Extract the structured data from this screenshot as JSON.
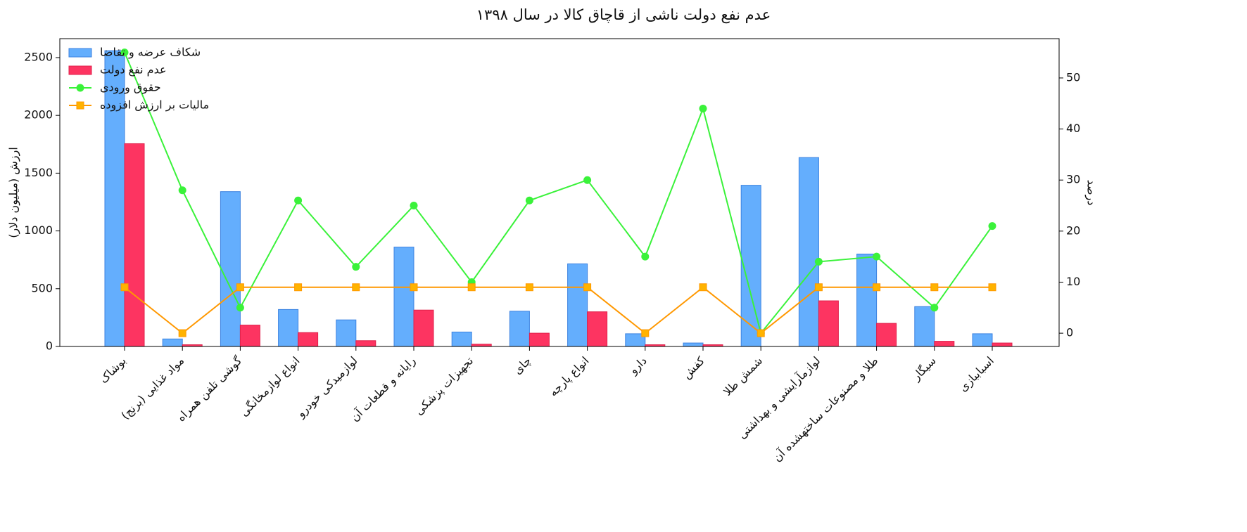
{
  "chart_data": {
    "type": "bar",
    "title": "عدم نفع دولت ناشی از قاچاق کالا در سال ۱۳۹۸",
    "ylabel": "ارزش (میلیون دلار)",
    "y2label": "درصد",
    "categories": [
      "بوشاک",
      "مواد غذایی (برنج)",
      "گوشی تلفن همراه",
      "انواع لوازمخانگی",
      "لوازمیدکی خودرو",
      "رایانه و قطعات آن",
      "تجهیزات پزشکی",
      "چای",
      "انواع پارچه",
      "دارو",
      "کفش",
      "شمش طلا",
      "لوازمآرایشی و بهداشتی",
      "طلا و مصنوعات ساختهشده آن",
      "سیگار",
      "اسباببازی"
    ],
    "series": [
      {
        "name": "شکاف عرضه و تقاضا",
        "type": "bar",
        "color": "#64aefd",
        "edgecolor": "#3b82e0",
        "values": [
          2560,
          65,
          1340,
          320,
          230,
          860,
          125,
          305,
          715,
          110,
          30,
          1395,
          1635,
          800,
          345,
          110
        ]
      },
      {
        "name": "عدم نفع دولت",
        "type": "bar",
        "color": "#fd3461",
        "edgecolor": "#e0204a",
        "values": [
          1755,
          15,
          185,
          120,
          50,
          315,
          20,
          115,
          300,
          15,
          15,
          0,
          395,
          200,
          45,
          30
        ]
      },
      {
        "name": "حقوق ورودی",
        "type": "line",
        "marker": "circle",
        "axis": "y2",
        "color": "#3af23a",
        "values": [
          55,
          28,
          5,
          26,
          13,
          25,
          10,
          26,
          30,
          15,
          44,
          0,
          14,
          15,
          5,
          21
        ]
      },
      {
        "name": "مالیات بر ارزش افزوده",
        "type": "line",
        "marker": "square",
        "axis": "y2",
        "color": "#ff9800",
        "values": [
          9,
          0,
          9,
          9,
          9,
          9,
          9,
          9,
          9,
          0,
          9,
          0,
          9,
          9,
          9,
          9
        ]
      }
    ],
    "ylim": [
      0,
      2664
    ],
    "yticks": [
      0,
      500,
      1000,
      1500,
      2000,
      2500
    ],
    "y2lim": [
      -2.6,
      57.7
    ],
    "y2ticks": [
      0,
      10,
      20,
      30,
      40,
      50
    ],
    "legend": "upper left"
  }
}
